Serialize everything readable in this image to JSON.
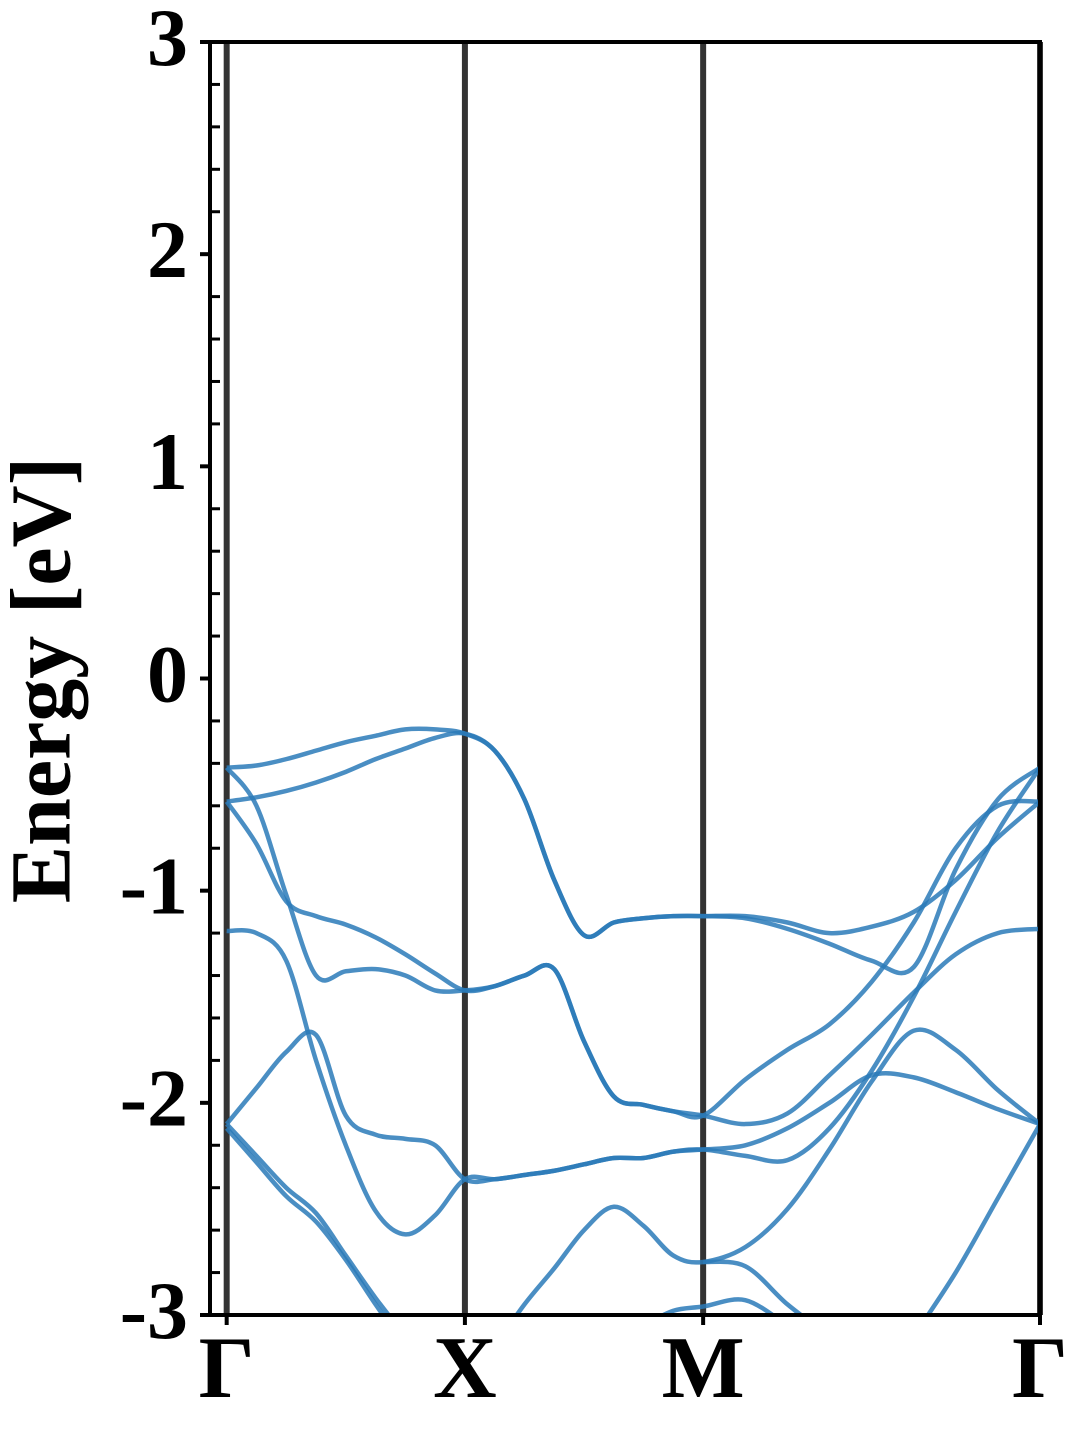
{
  "chart_data": {
    "type": "line",
    "ylabel": "Energy [eV]",
    "x": [
      0,
      0.125,
      0.25,
      0.375,
      0.5,
      0.625,
      0.75,
      0.875,
      1,
      1.125,
      1.25,
      1.375,
      1.5,
      1.625,
      1.75,
      1.875,
      2,
      2.177,
      2.354,
      2.53,
      2.707,
      2.884,
      3.06,
      3.237,
      3.414
    ],
    "xlim": [
      -0.07,
      3.414
    ],
    "xticks": [
      {
        "value": 0,
        "label": "Γ"
      },
      {
        "value": 1,
        "label": "X"
      },
      {
        "value": 2,
        "label": "M"
      },
      {
        "value": 3.414,
        "label": "Γ"
      }
    ],
    "ylim": [
      -3,
      3
    ],
    "yticks": [
      -3,
      -2,
      -1,
      0,
      1,
      2,
      3
    ],
    "yminorticks": [
      -2.8,
      -2.6,
      -2.4,
      -2.2,
      -1.8,
      -1.6,
      -1.4,
      -1.2,
      -0.8,
      -0.6,
      -0.4,
      -0.2,
      0.2,
      0.4,
      0.6,
      0.8,
      1.2,
      1.4,
      1.6,
      1.8,
      2.2,
      2.4,
      2.6,
      2.8
    ],
    "vlines": true,
    "color": "#2a7ab8",
    "series": [
      {
        "values": [
          -0.42,
          -0.41,
          -0.38,
          -0.34,
          -0.3,
          -0.27,
          -0.24,
          -0.24,
          -0.26,
          -0.34,
          -0.57,
          -0.95,
          -1.21,
          -1.15,
          -1.13,
          -1.12,
          -1.12,
          -1.12,
          -1.15,
          -1.2,
          -1.17,
          -1.1,
          -0.95,
          -0.75,
          -0.58
        ]
      },
      {
        "values": [
          -0.58,
          -0.56,
          -0.53,
          -0.49,
          -0.44,
          -0.38,
          -0.33,
          -0.28,
          -0.26,
          -0.34,
          -0.57,
          -0.95,
          -1.21,
          -1.15,
          -1.13,
          -1.12,
          -1.12,
          -1.13,
          -1.18,
          -1.25,
          -1.33,
          -1.36,
          -0.9,
          -0.57,
          -0.42
        ]
      },
      {
        "values": [
          -0.42,
          -0.6,
          -1.02,
          -1.4,
          -1.38,
          -1.37,
          -1.4,
          -1.47,
          -1.47,
          -1.45,
          -1.4,
          -1.37,
          -1.71,
          -1.97,
          -2.01,
          -2.04,
          -2.06,
          -1.89,
          -1.75,
          -1.63,
          -1.43,
          -1.15,
          -0.8,
          -0.6,
          -0.58
        ]
      },
      {
        "values": [
          -0.58,
          -0.78,
          -1.05,
          -1.12,
          -1.16,
          -1.22,
          -1.3,
          -1.39,
          -1.47,
          -1.45,
          -1.4,
          -1.37,
          -1.71,
          -1.97,
          -2.01,
          -2.04,
          -2.06,
          -2.1,
          -2.05,
          -1.87,
          -1.68,
          -1.48,
          -1.3,
          -1.2,
          -1.18
        ]
      },
      {
        "values": [
          -1.19,
          -1.2,
          -1.33,
          -1.8,
          -2.2,
          -2.51,
          -2.62,
          -2.53,
          -2.36,
          -2.36,
          -2.34,
          -2.32,
          -2.29,
          -2.26,
          -2.26,
          -2.23,
          -2.22,
          -2.25,
          -2.27,
          -2.12,
          -1.85,
          -1.5,
          -1.1,
          -0.72,
          -0.42
        ]
      },
      {
        "values": [
          -2.1,
          -1.93,
          -1.76,
          -1.68,
          -2.06,
          -2.15,
          -2.17,
          -2.2,
          -2.36,
          -2.36,
          -2.34,
          -2.32,
          -2.29,
          -2.26,
          -2.26,
          -2.23,
          -2.22,
          -2.2,
          -2.12,
          -2.0,
          -1.87,
          -1.88,
          -1.95,
          -2.03,
          -2.1
        ]
      },
      {
        "values": [
          -2.1,
          -2.25,
          -2.4,
          -2.52,
          -2.72,
          -2.92,
          -3.1,
          null,
          null,
          -3.15,
          -2.95,
          -2.78,
          -2.6,
          -2.49,
          -2.58,
          -2.72,
          -2.75,
          -2.68,
          -2.5,
          -2.22,
          -1.9,
          -1.66,
          -1.75,
          -1.94,
          -2.1
        ]
      },
      {
        "values": [
          -2.12,
          -2.28,
          -2.44,
          -2.56,
          -2.74,
          -2.95,
          -3.15,
          null,
          null,
          null,
          null,
          null,
          null,
          null,
          null,
          null,
          -2.75,
          -2.77,
          -2.95,
          -3.1,
          null,
          -3.1,
          -2.8,
          -2.45,
          -2.1
        ]
      },
      {
        "values": [
          null,
          null,
          null,
          null,
          null,
          null,
          null,
          null,
          null,
          null,
          null,
          null,
          null,
          null,
          -3.05,
          -2.98,
          -2.96,
          -2.93,
          -3.05,
          null,
          null,
          null,
          null,
          null,
          null
        ]
      }
    ]
  }
}
